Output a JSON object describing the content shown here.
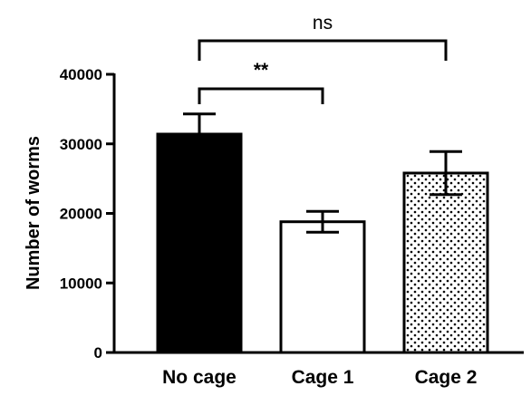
{
  "chart_data": {
    "type": "bar",
    "categories": [
      "No cage",
      "Cage 1",
      "Cage 2"
    ],
    "values": [
      31400,
      18800,
      25800
    ],
    "errors": [
      2900,
      1500,
      3100
    ],
    "fills": [
      "solid-black",
      "white",
      "dotted"
    ],
    "ylabel": "Number of worms",
    "xlabel": "",
    "ylim": [
      0,
      40000
    ],
    "yticks": [
      0,
      10000,
      20000,
      30000,
      40000
    ],
    "ytick_labels": [
      "0",
      "10000",
      "20000",
      "30000",
      "40000"
    ],
    "grid": false,
    "significance": [
      {
        "from": "No cage",
        "to": "Cage 2",
        "label": "ns"
      },
      {
        "from": "No cage",
        "to": "Cage 1",
        "label": "**"
      }
    ]
  },
  "colors": {
    "bar_black": "#000000",
    "bar_white": "#ffffff",
    "dot_color": "#000000"
  }
}
